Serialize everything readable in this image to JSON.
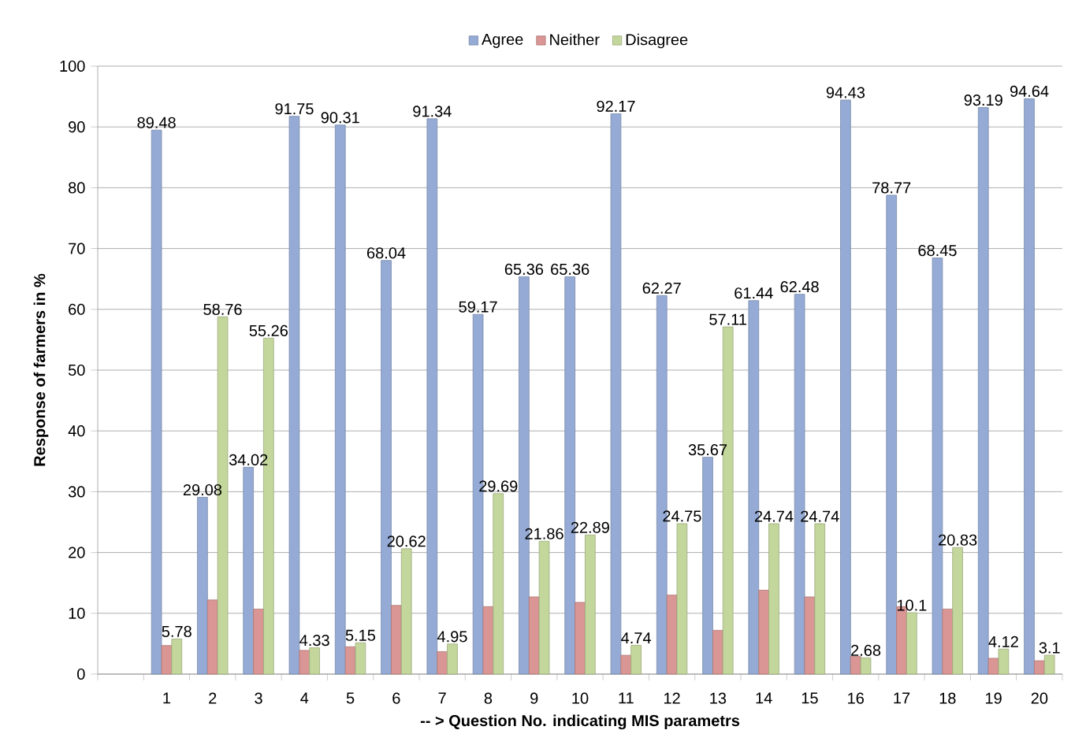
{
  "chart_data": {
    "type": "bar",
    "xlabel": "-- >  Question No. indicating MIS parametrs",
    "ylabel": "Response of farmers in %",
    "categories": [
      null,
      "1",
      "2",
      "3",
      "4",
      "5",
      "6",
      "7",
      "8",
      "9",
      "10",
      "11",
      "12",
      "13",
      "14",
      "15",
      "16",
      "17",
      "18",
      "19",
      "20"
    ],
    "series": [
      {
        "name": "Agree",
        "color": "#95abd5",
        "values": [
          null,
          89.48,
          29.08,
          34.02,
          91.75,
          90.31,
          68.04,
          91.34,
          59.17,
          65.36,
          65.36,
          92.17,
          62.27,
          35.67,
          61.44,
          62.48,
          94.43,
          78.77,
          68.45,
          93.19,
          94.64
        ],
        "value_labels": [
          null,
          "89.48",
          "29.08",
          "34.02",
          "91.75",
          "90.31",
          "68.04",
          "91.34",
          "59.17",
          "65.36",
          "65.36",
          "92.17",
          "62.27",
          "35.67",
          "61.44",
          "62.48",
          "94.43",
          "78.77",
          "68.45",
          "93.19",
          "94.64"
        ]
      },
      {
        "name": "Neither",
        "color": "#d99694",
        "values": [
          null,
          4.7,
          12.2,
          10.7,
          3.9,
          4.5,
          11.3,
          3.7,
          11.1,
          12.7,
          11.8,
          3.1,
          13.0,
          7.2,
          13.8,
          12.7,
          2.9,
          11.1,
          10.7,
          2.6,
          2.2
        ]
      },
      {
        "name": "Disagree",
        "color": "#c3d69b",
        "values": [
          null,
          5.78,
          58.76,
          55.26,
          4.33,
          5.15,
          20.62,
          4.95,
          29.69,
          21.86,
          22.89,
          4.74,
          24.75,
          57.11,
          24.74,
          24.74,
          2.68,
          10.1,
          20.83,
          4.12,
          3.1
        ],
        "value_labels": [
          null,
          "5.78",
          "58.76",
          "55.26",
          "4.33",
          "5.15",
          "20.62",
          "4.95",
          "29.69",
          "21.86",
          "22.89",
          "4.74",
          "24.75",
          "57.11",
          "24.74",
          "24.74",
          "2.68",
          "10.1",
          "20.83",
          "4.12",
          "3.1"
        ]
      }
    ],
    "ylim": [
      0,
      100
    ],
    "yticks": [
      0,
      10,
      20,
      30,
      40,
      50,
      60,
      70,
      80,
      90,
      100
    ],
    "grid": "y",
    "legend": "top"
  }
}
